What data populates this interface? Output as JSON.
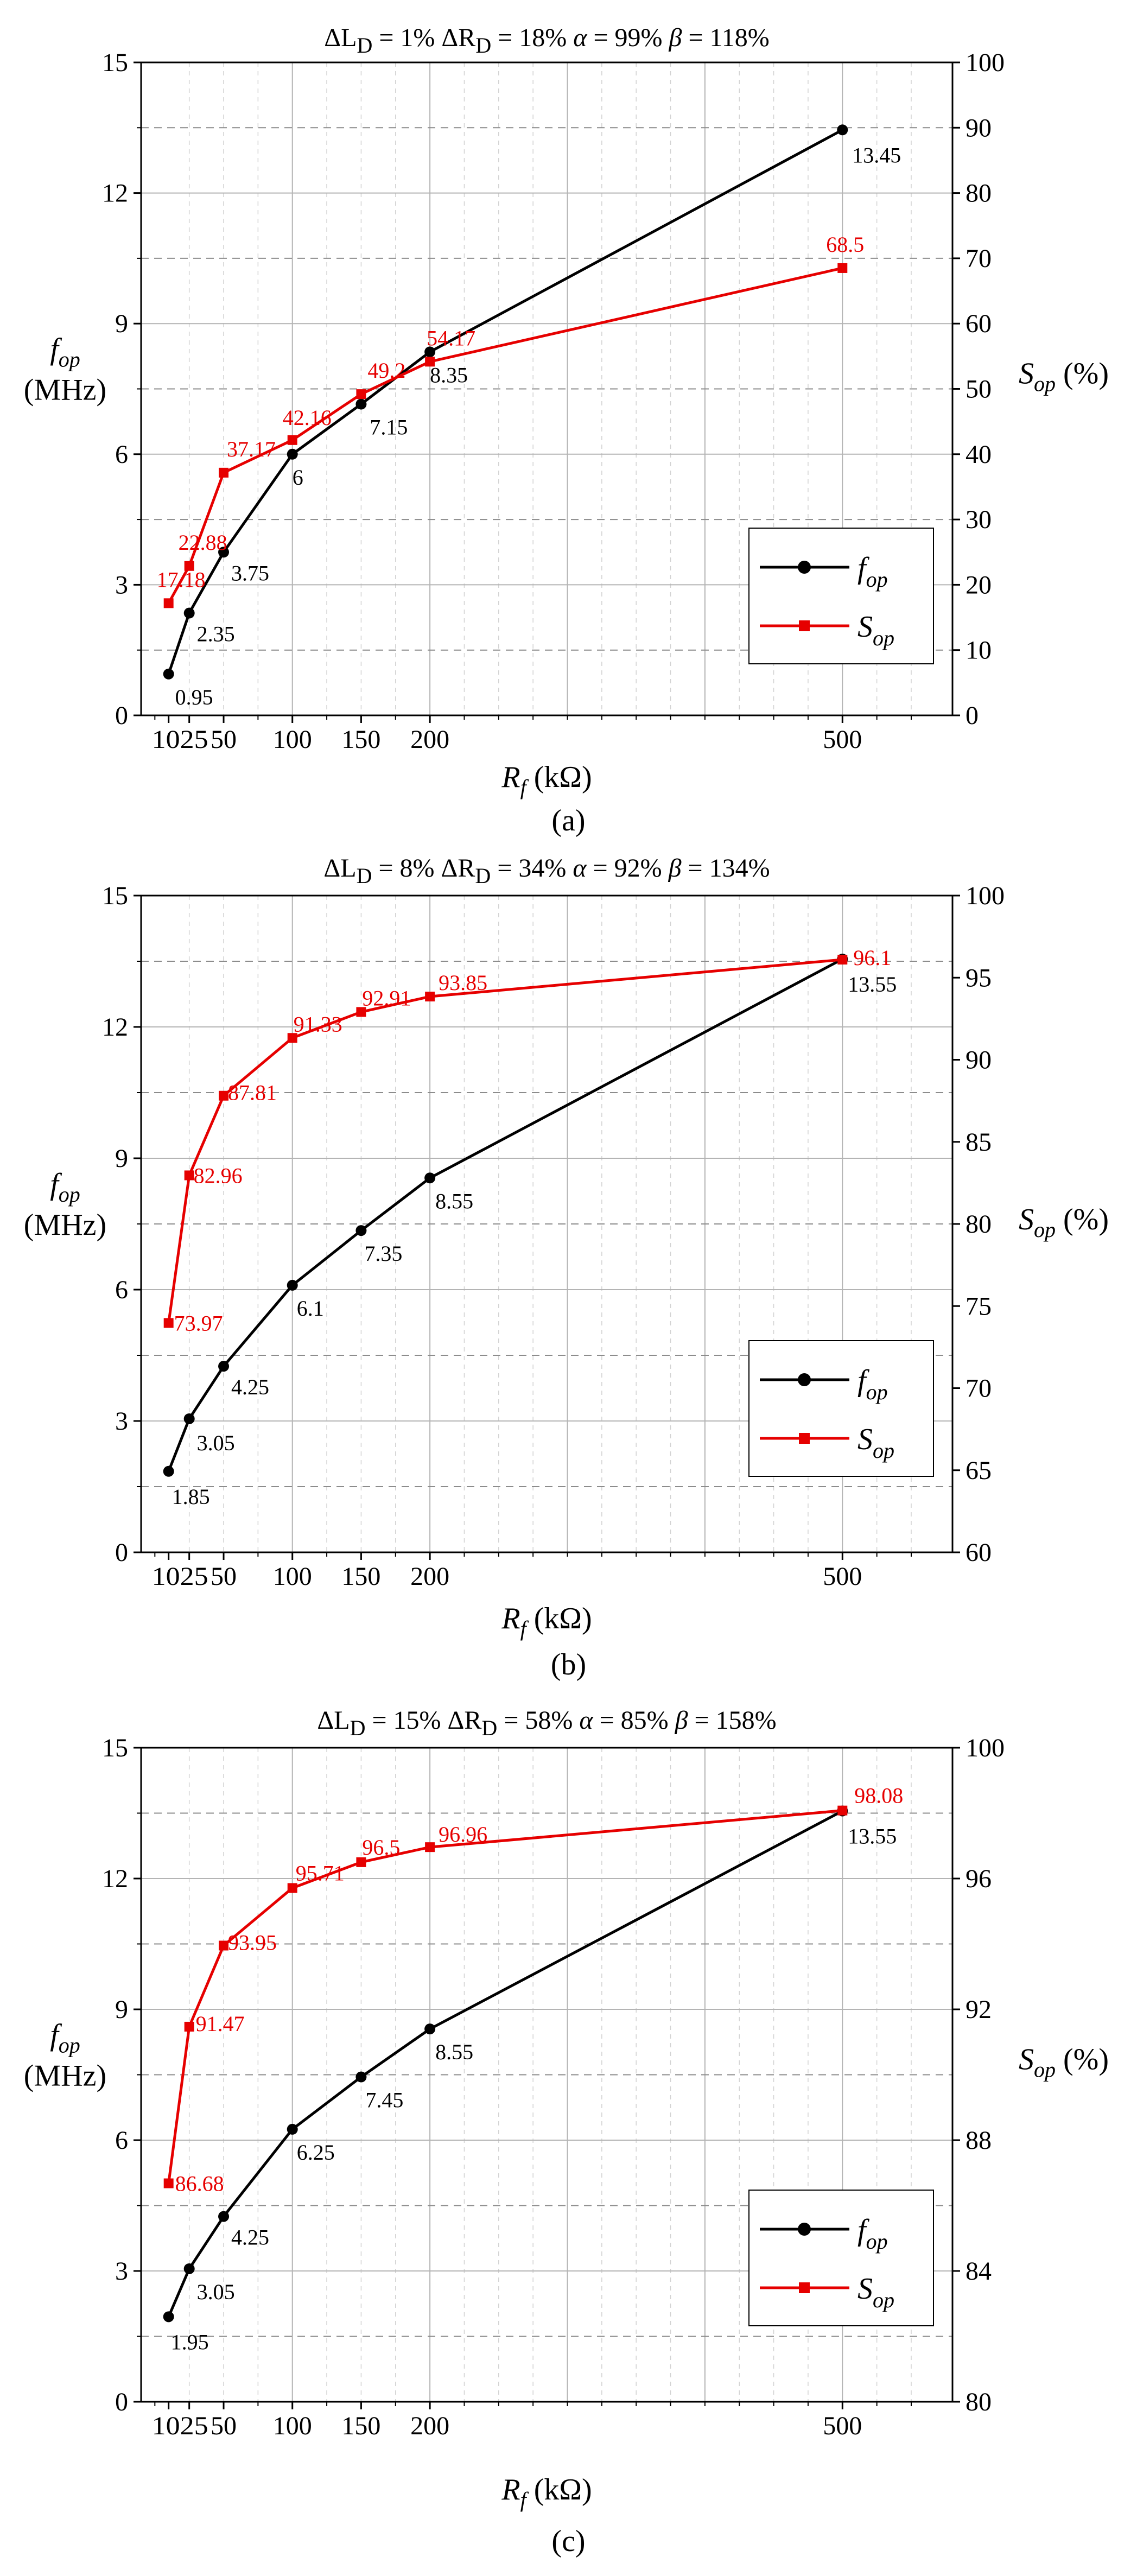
{
  "colors": {
    "f": "#000000",
    "s": "#e60000",
    "grid": "#b4b4b4",
    "dash": "#8c8c8c"
  },
  "axis_text": {
    "x_main": "R",
    "x_sub": "f",
    "x_unit": " (kΩ)",
    "yl_main": "f",
    "yl_sub": "op",
    "yl_unit": "(MHz)",
    "yr_main": "S",
    "yr_sub": "op",
    "yr_unit": " (%)"
  },
  "legend": {
    "f_main": "f",
    "f_sub": "op",
    "s_main": "S",
    "s_sub": "op"
  },
  "chart_data": [
    {
      "type": "line",
      "panel_label": "(a)",
      "title": {
        "dl": "1%",
        "dr": "18%",
        "alpha": "99%",
        "beta": "118%"
      },
      "x": [
        10,
        25,
        50,
        100,
        150,
        200,
        500
      ],
      "x_ticks": [
        10,
        25,
        50,
        100,
        150,
        200,
        500
      ],
      "x_tick_labels": [
        "10",
        "25",
        "50",
        "100",
        "150",
        "200",
        "500"
      ],
      "xlim": [
        -10,
        580
      ],
      "xlabel": "R_f (kΩ)",
      "ylabel_left": "f_op (MHz)",
      "ylabel_right": "S_op (%)",
      "ylim_left": [
        0,
        15
      ],
      "yticks_left": [
        0,
        3,
        6,
        9,
        12,
        15
      ],
      "ylim_right": [
        0,
        100
      ],
      "yticks_right": [
        0,
        10,
        20,
        30,
        40,
        50,
        60,
        70,
        80,
        90,
        100
      ],
      "legend_position": "lower-right",
      "series": [
        {
          "name": "f_op",
          "axis": "left",
          "values": [
            0.95,
            2.35,
            3.75,
            6,
            7.15,
            8.35,
            13.45
          ],
          "labels": [
            "0.95",
            "2.35",
            "3.75",
            "6",
            "7.15",
            "8.35",
            "13.45"
          ]
        },
        {
          "name": "S_op",
          "axis": "right",
          "values": [
            17.18,
            22.88,
            37.17,
            42.16,
            49.2,
            54.17,
            68.5
          ],
          "labels": [
            "17.18",
            "22.88",
            "37.17",
            "42.16",
            "49.2",
            "54.17",
            "68.5"
          ]
        }
      ]
    },
    {
      "type": "line",
      "panel_label": "(b)",
      "title": {
        "dl": "8%",
        "dr": "34%",
        "alpha": "92%",
        "beta": "134%"
      },
      "x": [
        10,
        25,
        50,
        100,
        150,
        200,
        500
      ],
      "x_ticks": [
        10,
        25,
        50,
        100,
        150,
        200,
        500
      ],
      "x_tick_labels": [
        "10",
        "25",
        "50",
        "100",
        "150",
        "200",
        "500"
      ],
      "xlim": [
        -10,
        580
      ],
      "xlabel": "R_f (kΩ)",
      "ylabel_left": "f_op (MHz)",
      "ylabel_right": "S_op (%)",
      "ylim_left": [
        0,
        15
      ],
      "yticks_left": [
        0,
        3,
        6,
        9,
        12,
        15
      ],
      "ylim_right": [
        60,
        100
      ],
      "yticks_right": [
        60,
        65,
        70,
        75,
        80,
        85,
        90,
        95,
        100
      ],
      "legend_position": "lower-right",
      "series": [
        {
          "name": "f_op",
          "axis": "left",
          "values": [
            1.85,
            3.05,
            4.25,
            6.1,
            7.35,
            8.55,
            13.55
          ],
          "labels": [
            "1.85",
            "3.05",
            "4.25",
            "6.1",
            "7.35",
            "8.55",
            "13.55"
          ]
        },
        {
          "name": "S_op",
          "axis": "right",
          "values": [
            73.97,
            82.96,
            87.81,
            91.33,
            92.91,
            93.85,
            96.1
          ],
          "labels": [
            "73.97",
            "82.96",
            "87.81",
            "91.33",
            "92.91",
            "93.85",
            "96.1"
          ]
        }
      ]
    },
    {
      "type": "line",
      "panel_label": "(c)",
      "title": {
        "dl": "15%",
        "dr": "58%",
        "alpha": "85%",
        "beta": "158%"
      },
      "x": [
        10,
        25,
        50,
        100,
        150,
        200,
        500
      ],
      "x_ticks": [
        10,
        25,
        50,
        100,
        150,
        200,
        500
      ],
      "x_tick_labels": [
        "10",
        "25",
        "50",
        "100",
        "150",
        "200",
        "500"
      ],
      "xlim": [
        -10,
        580
      ],
      "xlabel": "R_f (kΩ)",
      "ylabel_left": "f_op (MHz)",
      "ylabel_right": "S_op (%)",
      "ylim_left": [
        0,
        15
      ],
      "yticks_left": [
        0,
        3,
        6,
        9,
        12,
        15
      ],
      "ylim_right": [
        80,
        100
      ],
      "yticks_right": [
        80,
        84,
        88,
        92,
        96,
        100
      ],
      "legend_position": "lower-right",
      "series": [
        {
          "name": "f_op",
          "axis": "left",
          "values": [
            1.95,
            3.05,
            4.25,
            6.25,
            7.45,
            8.55,
            13.55
          ],
          "labels": [
            "1.95",
            "3.05",
            "4.25",
            "6.25",
            "7.45",
            "8.55",
            "13.55"
          ]
        },
        {
          "name": "S_op",
          "axis": "right",
          "values": [
            86.68,
            91.47,
            93.95,
            95.71,
            96.5,
            96.96,
            98.08
          ],
          "labels": [
            "86.68",
            "91.47",
            "93.95",
            "95.71",
            "96.5",
            "96.96",
            "98.08"
          ]
        }
      ]
    }
  ]
}
